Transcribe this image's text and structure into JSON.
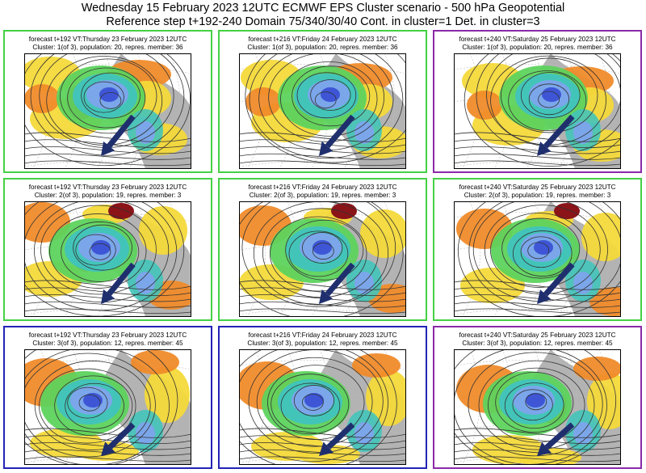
{
  "header": {
    "line1": "Wednesday 15 February 2023 12UTC ECMWF EPS Cluster scenario - 500 hPa Geopotential",
    "line2": "Reference step t+192-240 Domain 75/340/30/40 Cont. in cluster=1 Det. in cluster=3"
  },
  "colors": {
    "frame_green": "#44d144",
    "frame_purple": "#8a2aa8",
    "frame_blue": "#2222b8",
    "arrow": "#1f2f6e"
  },
  "rows": [
    {
      "cluster_caption": "Cluster: 1(of 3), population: 20, repres. member: 36",
      "panels": [
        {
          "forecast": "forecast t+192 VT:Thursday 23 February 2023 12UTC",
          "frame": "green"
        },
        {
          "forecast": "forecast t+216 VT:Friday 24 February 2023 12UTC",
          "frame": "green"
        },
        {
          "forecast": "forecast t+240 VT:Saturday 25 February 2023 12UTC",
          "frame": "purple"
        }
      ]
    },
    {
      "cluster_caption": "Cluster: 2(of 3), population: 19, repres. member: 3",
      "panels": [
        {
          "forecast": "forecast t+192 VT:Thursday 23 February 2023 12UTC",
          "frame": "green"
        },
        {
          "forecast": "forecast t+216 VT:Friday 24 February 2023 12UTC",
          "frame": "green"
        },
        {
          "forecast": "forecast t+240 VT:Saturday 25 February 2023 12UTC",
          "frame": "green"
        }
      ]
    },
    {
      "cluster_caption": "Cluster: 3(of 3), population: 12, repres. member: 45",
      "panels": [
        {
          "forecast": "forecast t+192 VT:Thursday 23 February 2023 12UTC",
          "frame": "blue"
        },
        {
          "forecast": "forecast t+216 VT:Friday 24 February 2023 12UTC",
          "frame": "blue"
        },
        {
          "forecast": "forecast t+240 VT:Saturday 25 February 2023 12UTC",
          "frame": "purple"
        }
      ]
    }
  ]
}
